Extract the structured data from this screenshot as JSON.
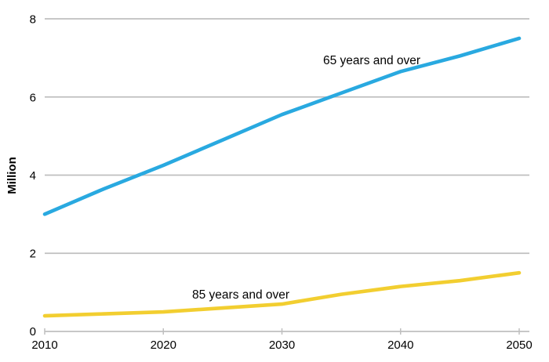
{
  "chart_data": {
    "type": "line",
    "title": "",
    "xlabel": "",
    "ylabel": "Million",
    "xlim": [
      2010,
      2050
    ],
    "ylim": [
      0,
      8
    ],
    "grid": "horizontal",
    "legend_position": "inline-annotations",
    "x": [
      2010,
      2015,
      2020,
      2025,
      2030,
      2035,
      2040,
      2045,
      2050
    ],
    "x_ticks": [
      "2010",
      "2020",
      "2030",
      "2040",
      "2050"
    ],
    "y_ticks": [
      "0",
      "2",
      "4",
      "6",
      "8"
    ],
    "series": [
      {
        "name": "65 years and over",
        "color": "#29a9e0",
        "values": [
          3.0,
          3.65,
          4.25,
          4.9,
          5.55,
          6.1,
          6.65,
          7.05,
          7.5
        ]
      },
      {
        "name": "85 years and over",
        "color": "#f2ce30",
        "values": [
          0.4,
          0.45,
          0.5,
          0.6,
          0.7,
          0.95,
          1.15,
          1.3,
          1.5
        ]
      }
    ],
    "colors": {
      "grid": "#bfbfbf",
      "text": "#000000",
      "background": "#ffffff"
    }
  }
}
